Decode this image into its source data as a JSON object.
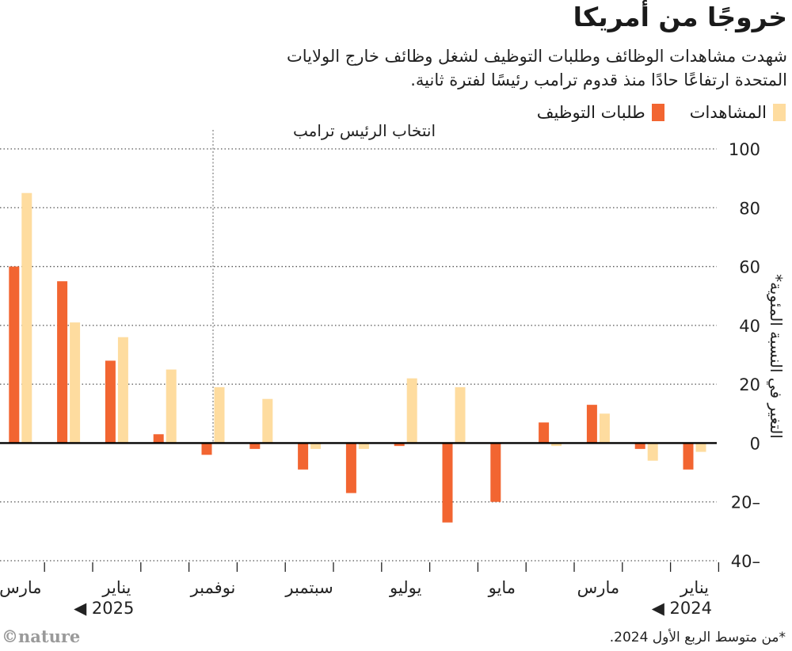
{
  "title": "خروجًا من أمريكا",
  "subtitle": "شهدت مشاهدات الوظائف وطلبات التوظيف لشغل وظائف خارج الولايات المتحدة ارتفاعًا حادًا منذ قدوم ترامب رئيسًا لفترة ثانية.",
  "footnote": "*من متوسط الربع الأول 2024.",
  "credit": "©nature",
  "colors": {
    "views": "#fedc9f",
    "applications": "#f26531",
    "axis": "#000000",
    "grid": "#555555"
  },
  "chart_data": {
    "type": "bar",
    "ylabel": "التغير في النسبة المئوية*",
    "ylim": [
      -40,
      100
    ],
    "yticks": [
      100,
      80,
      60,
      40,
      20,
      0,
      -20,
      -40
    ],
    "ytick_labels": [
      "100",
      "80",
      "60",
      "40",
      "20",
      "0",
      "20–",
      "40–"
    ],
    "series": [
      {
        "name": "المشاهدات",
        "key": "views",
        "values": [
          -3,
          -6,
          10,
          -1,
          0,
          19,
          22,
          -2,
          -2,
          15,
          19,
          25,
          36,
          41,
          85
        ]
      },
      {
        "name": "طلبات التوظيف",
        "key": "applications",
        "values": [
          -9,
          -2,
          13,
          7,
          -20,
          -27,
          -1,
          -17,
          -9,
          -2,
          -4,
          3,
          28,
          55,
          60
        ]
      }
    ],
    "month_labels": [
      {
        "index": 0,
        "text": "يناير"
      },
      {
        "index": 2,
        "text": "مارس"
      },
      {
        "index": 4,
        "text": "مايو"
      },
      {
        "index": 6,
        "text": "يوليو"
      },
      {
        "index": 8,
        "text": "سبتمبر"
      },
      {
        "index": 10,
        "text": "نوفمبر"
      },
      {
        "index": 12,
        "text": "يناير"
      },
      {
        "index": 14,
        "text": "مارس"
      }
    ],
    "year_labels": [
      {
        "index": 0,
        "text": "◀ 2024"
      },
      {
        "index": 12,
        "text": "◀ 2025"
      }
    ],
    "annotation": {
      "text": "انتخاب الرئيس ترامب",
      "index": 10
    },
    "grid": true,
    "legend_position": "top-right"
  }
}
